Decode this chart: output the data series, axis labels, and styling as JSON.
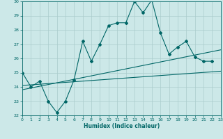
{
  "xlabel": "Humidex (Indice chaleur)",
  "bg_color": "#cce8e8",
  "grid_color": "#aacccc",
  "line_color": "#006666",
  "ylim": [
    22,
    30
  ],
  "xlim": [
    0,
    23
  ],
  "yticks": [
    22,
    23,
    24,
    25,
    26,
    27,
    28,
    29,
    30
  ],
  "xticks": [
    0,
    1,
    2,
    3,
    4,
    5,
    6,
    7,
    8,
    9,
    10,
    11,
    12,
    13,
    14,
    15,
    16,
    17,
    18,
    19,
    20,
    21,
    22,
    23
  ],
  "line1_x": [
    0,
    1,
    2,
    3,
    4,
    5,
    6,
    7,
    8,
    9,
    10,
    11,
    12,
    13,
    14,
    15,
    16,
    17,
    18,
    19,
    20,
    21,
    22
  ],
  "line1_y": [
    25.0,
    24.0,
    24.4,
    23.0,
    22.2,
    23.0,
    24.5,
    27.2,
    25.8,
    27.0,
    28.3,
    28.5,
    28.5,
    30.0,
    29.2,
    30.1,
    27.8,
    26.3,
    26.8,
    27.2,
    26.1,
    25.8,
    25.8
  ],
  "line2_x": [
    0,
    23
  ],
  "line2_y": [
    24.1,
    25.1
  ],
  "line3_x": [
    0,
    23
  ],
  "line3_y": [
    23.8,
    26.6
  ]
}
